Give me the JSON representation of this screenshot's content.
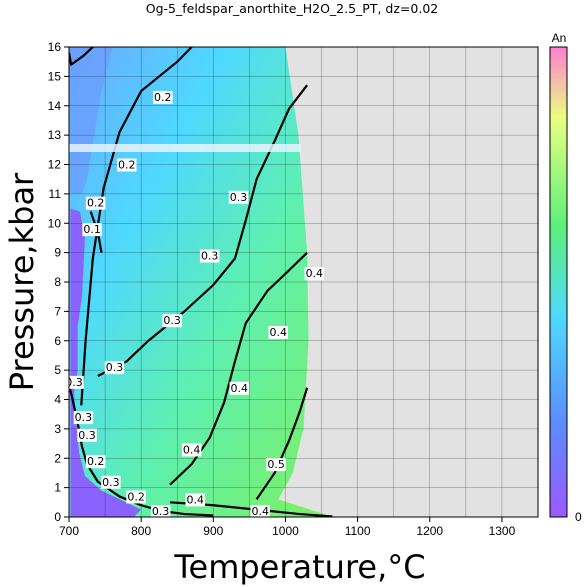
{
  "chart_data": {
    "type": "heatmap",
    "title": "Og-5_feldspar_anorthite_H2O_2.5_PT, dz=0.02",
    "xlabel": "Temperature,°C",
    "ylabel": "Pressure,kbar",
    "xlim": [
      700,
      1350
    ],
    "ylim": [
      0,
      16
    ],
    "xticks": [
      700,
      800,
      900,
      1000,
      1100,
      1200,
      1300
    ],
    "yticks": [
      0,
      1,
      2,
      3,
      4,
      5,
      6,
      7,
      8,
      9,
      10,
      11,
      12,
      13,
      14,
      15,
      16
    ],
    "grid": true,
    "colorbar": {
      "label": "An",
      "min_label": "0",
      "colors": [
        "#9b59ff",
        "#5b8cff",
        "#4fd8ff",
        "#5cf07a",
        "#e8ff80",
        "#ff7fd0"
      ]
    },
    "no_data_color": "#e2e2e2",
    "field_boundary": [
      [
        700,
        16
      ],
      [
        1000,
        16
      ],
      [
        1018,
        13
      ],
      [
        1030,
        9
      ],
      [
        1032,
        6
      ],
      [
        1025,
        3
      ],
      [
        1010,
        1.5
      ],
      [
        990,
        0.6
      ],
      [
        1060,
        0.05
      ],
      [
        1060,
        0
      ]
    ],
    "contours": [
      {
        "level": "0.1",
        "points": [
          [
            730,
            10.4
          ],
          [
            740,
            9.7
          ],
          [
            745,
            9
          ]
        ]
      },
      {
        "level": "0.2",
        "points": [
          [
            717,
            3.8
          ],
          [
            723,
            6
          ],
          [
            733,
            8.8
          ],
          [
            748,
            11.2
          ],
          [
            770,
            13.1
          ],
          [
            800,
            14.5
          ],
          [
            850,
            15.5
          ],
          [
            870,
            16
          ]
        ]
      },
      {
        "level": "0.2",
        "points": [
          [
            700,
            15.8
          ],
          [
            703,
            15.4
          ],
          [
            720,
            15.7
          ],
          [
            733,
            16
          ]
        ]
      },
      {
        "level": "0.3",
        "points": [
          [
            740,
            4.8
          ],
          [
            780,
            5.3
          ],
          [
            810,
            6.0
          ],
          [
            860,
            7.0
          ],
          [
            900,
            7.9
          ],
          [
            930,
            8.8
          ],
          [
            945,
            10.1
          ],
          [
            960,
            11.5
          ],
          [
            985,
            12.8
          ],
          [
            1005,
            13.9
          ],
          [
            1030,
            14.7
          ]
        ]
      },
      {
        "level": "0.3",
        "points": [
          [
            700,
            4.5
          ],
          [
            705,
            4.0
          ],
          [
            712,
            3.2
          ],
          [
            718,
            2.4
          ],
          [
            725,
            1.8
          ],
          [
            740,
            1.2
          ],
          [
            770,
            0.7
          ],
          [
            800,
            0.4
          ],
          [
            830,
            0.2
          ],
          [
            860,
            0.1
          ],
          [
            900,
            0.05
          ]
        ]
      },
      {
        "level": "0.4",
        "points": [
          [
            840,
            1.1
          ],
          [
            870,
            1.8
          ],
          [
            895,
            2.7
          ],
          [
            915,
            3.9
          ],
          [
            930,
            5.3
          ],
          [
            945,
            6.6
          ],
          [
            975,
            7.7
          ],
          [
            1005,
            8.4
          ],
          [
            1030,
            9.0
          ]
        ]
      },
      {
        "level": "0.4",
        "points": [
          [
            840,
            0.5
          ],
          [
            900,
            0.4
          ],
          [
            980,
            0.2
          ],
          [
            1020,
            0.1
          ],
          [
            1065,
            0.02
          ]
        ]
      },
      {
        "level": "0.5",
        "points": [
          [
            960,
            0.6
          ],
          [
            985,
            1.5
          ],
          [
            1005,
            2.6
          ],
          [
            1020,
            3.6
          ],
          [
            1030,
            4.4
          ]
        ]
      }
    ],
    "contour_labels": [
      {
        "text": "0.2",
        "x": 830,
        "y": 14.3
      },
      {
        "text": "0.2",
        "x": 780,
        "y": 12.0
      },
      {
        "text": "0.2",
        "x": 737,
        "y": 10.7
      },
      {
        "text": "0.1",
        "x": 732,
        "y": 9.8
      },
      {
        "text": "0.3",
        "x": 935,
        "y": 10.9
      },
      {
        "text": "0.3",
        "x": 895,
        "y": 8.9
      },
      {
        "text": "0.3",
        "x": 843,
        "y": 6.7
      },
      {
        "text": "0.3",
        "x": 763,
        "y": 5.1
      },
      {
        "text": "0.3",
        "x": 707,
        "y": 4.6
      },
      {
        "text": "0.3",
        "x": 720,
        "y": 3.4
      },
      {
        "text": "0.3",
        "x": 725,
        "y": 2.8
      },
      {
        "text": "0.2",
        "x": 737,
        "y": 1.9
      },
      {
        "text": "0.3",
        "x": 758,
        "y": 1.2
      },
      {
        "text": "0.2",
        "x": 793,
        "y": 0.7
      },
      {
        "text": "0.3",
        "x": 827,
        "y": 0.2
      },
      {
        "text": "0.4",
        "x": 1040,
        "y": 8.3
      },
      {
        "text": "0.4",
        "x": 990,
        "y": 6.3
      },
      {
        "text": "0.4",
        "x": 936,
        "y": 4.4
      },
      {
        "text": "0.4",
        "x": 870,
        "y": 2.3
      },
      {
        "text": "0.4",
        "x": 875,
        "y": 0.6
      },
      {
        "text": "0.4",
        "x": 965,
        "y": 0.2
      },
      {
        "text": "0.5",
        "x": 987,
        "y": 1.8
      }
    ]
  }
}
